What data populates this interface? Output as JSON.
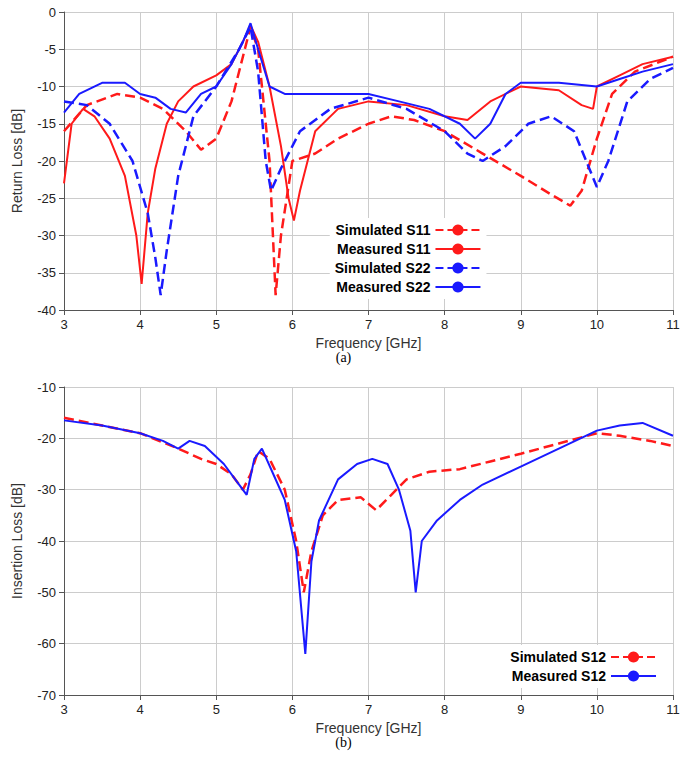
{
  "chart_data": [
    {
      "type": "line",
      "caption": "(a)",
      "x_label": "Frequency [GHz]",
      "y_label": "Return Loss [dB]",
      "xlim": [
        3,
        11
      ],
      "xticks": [
        3,
        4,
        5,
        6,
        7,
        8,
        9,
        10,
        11
      ],
      "ylim": [
        -40,
        0
      ],
      "yticks": [
        -40,
        -35,
        -30,
        -25,
        -20,
        -15,
        -10,
        -5,
        0
      ],
      "grid": true,
      "legend": "bottom",
      "series": [
        {
          "name": "Simulated S11",
          "color": "#ff1a1a",
          "line_style": "dashed",
          "x": [
            3,
            3.3,
            3.7,
            4.0,
            4.3,
            4.6,
            4.8,
            5.0,
            5.2,
            5.35,
            5.45,
            5.55,
            5.7,
            5.78,
            5.85,
            6.0,
            6.3,
            6.6,
            7.0,
            7.3,
            7.6,
            8.0,
            8.5,
            9.0,
            9.4,
            9.65,
            9.8,
            10.0,
            10.2,
            10.5,
            11
          ],
          "values": [
            -16,
            -12.5,
            -11,
            -11.5,
            -13,
            -16,
            -18.5,
            -17,
            -12,
            -6,
            -2,
            -5,
            -20,
            -38,
            -30,
            -20,
            -19,
            -17,
            -15,
            -14,
            -14.5,
            -16,
            -19,
            -22,
            -24.5,
            -26,
            -24,
            -17,
            -11,
            -8,
            -6
          ]
        },
        {
          "name": "Measured S11",
          "color": "#ff1a1a",
          "line_style": "solid",
          "x": [
            3,
            3.1,
            3.25,
            3.4,
            3.6,
            3.8,
            3.95,
            4.02,
            4.1,
            4.2,
            4.35,
            4.5,
            4.7,
            5.0,
            5.2,
            5.35,
            5.45,
            5.55,
            5.7,
            5.85,
            5.95,
            6.02,
            6.1,
            6.3,
            6.6,
            7.0,
            7.5,
            8.0,
            8.3,
            8.6,
            9.0,
            9.5,
            9.8,
            9.95,
            10.0,
            10.3,
            10.6,
            11
          ],
          "values": [
            -23,
            -15,
            -13,
            -14,
            -17,
            -22,
            -30,
            -36.5,
            -27,
            -21,
            -15,
            -12,
            -10,
            -8.5,
            -7,
            -4,
            -1.8,
            -4,
            -10,
            -18,
            -25,
            -28,
            -24,
            -16,
            -13,
            -12,
            -12.5,
            -14,
            -14.5,
            -12,
            -10,
            -10.5,
            -12.5,
            -13,
            -10,
            -8.5,
            -7,
            -6
          ]
        },
        {
          "name": "Simulated S22",
          "color": "#1a1aff",
          "line_style": "dashed",
          "x": [
            3,
            3.3,
            3.6,
            3.9,
            4.1,
            4.2,
            4.27,
            4.35,
            4.5,
            4.7,
            5.0,
            5.3,
            5.45,
            5.55,
            5.65,
            5.72,
            5.85,
            6.1,
            6.5,
            7.0,
            7.5,
            8.0,
            8.3,
            8.5,
            8.8,
            9.1,
            9.4,
            9.7,
            9.9,
            10.0,
            10.15,
            10.4,
            10.7,
            11
          ],
          "values": [
            -12,
            -12.5,
            -15,
            -20,
            -27,
            -33,
            -38,
            -32,
            -22,
            -14,
            -10,
            -5,
            -2,
            -8,
            -20,
            -24,
            -21,
            -16,
            -13,
            -11.5,
            -13,
            -16,
            -19,
            -20,
            -18,
            -15,
            -14,
            -16,
            -21,
            -23.5,
            -20,
            -12,
            -9,
            -7.5
          ]
        },
        {
          "name": "Measured S22",
          "color": "#1a1aff",
          "line_style": "solid",
          "x": [
            3,
            3.2,
            3.5,
            3.8,
            4.0,
            4.2,
            4.4,
            4.6,
            4.8,
            5.0,
            5.2,
            5.35,
            5.45,
            5.55,
            5.7,
            5.9,
            6.3,
            6.7,
            7.0,
            7.4,
            7.8,
            8.2,
            8.4,
            8.6,
            8.8,
            9.0,
            9.5,
            10.0,
            10.3,
            10.6,
            11
          ],
          "values": [
            -13.5,
            -11,
            -9.5,
            -9.5,
            -11,
            -11.5,
            -13,
            -13.5,
            -11,
            -10,
            -7,
            -4,
            -1.5,
            -5,
            -10,
            -11,
            -11,
            -11,
            -11,
            -12,
            -13,
            -15,
            -17,
            -15,
            -11,
            -9.5,
            -9.5,
            -10,
            -9,
            -8,
            -7
          ]
        }
      ]
    },
    {
      "type": "line",
      "caption": "(b)",
      "x_label": "Frequency [GHz]",
      "y_label": "Insertion Loss [dB]",
      "xlim": [
        3,
        11
      ],
      "xticks": [
        3,
        4,
        5,
        6,
        7,
        8,
        9,
        10,
        11
      ],
      "ylim": [
        -70,
        -10
      ],
      "yticks": [
        -70,
        -60,
        -50,
        -40,
        -30,
        -20,
        -10
      ],
      "grid": true,
      "legend": "lower right",
      "series": [
        {
          "name": "Simulated S12",
          "color": "#ff1a1a",
          "line_style": "dashed",
          "x": [
            3,
            3.5,
            4.0,
            4.5,
            4.8,
            5.0,
            5.2,
            5.35,
            5.45,
            5.55,
            5.7,
            5.9,
            6.05,
            6.15,
            6.25,
            6.4,
            6.6,
            6.9,
            7.1,
            7.3,
            7.5,
            7.8,
            8.2,
            8.6,
            9.0,
            9.5,
            10.0,
            10.3,
            10.7,
            11
          ],
          "values": [
            -16,
            -17.5,
            -19,
            -22,
            -24,
            -25,
            -27,
            -30,
            -27,
            -22.5,
            -24,
            -30,
            -40,
            -50,
            -42,
            -35,
            -32,
            -31.5,
            -34,
            -31,
            -28,
            -26.5,
            -26,
            -24.5,
            -23,
            -21,
            -19,
            -19.5,
            -20.5,
            -21.5
          ]
        },
        {
          "name": "Measured S12",
          "color": "#1a1aff",
          "line_style": "solid",
          "x": [
            3,
            3.5,
            4.0,
            4.3,
            4.5,
            4.65,
            4.85,
            5.1,
            5.3,
            5.4,
            5.5,
            5.6,
            5.75,
            5.9,
            6.05,
            6.17,
            6.25,
            6.35,
            6.6,
            6.85,
            7.05,
            7.25,
            7.4,
            7.55,
            7.62,
            7.7,
            7.9,
            8.2,
            8.5,
            9.0,
            9.5,
            10.0,
            10.3,
            10.6,
            11
          ],
          "values": [
            -16.5,
            -17.5,
            -19,
            -20.5,
            -22,
            -20.5,
            -21.5,
            -25,
            -29,
            -31,
            -24,
            -22,
            -27,
            -32,
            -42,
            -62,
            -44,
            -36,
            -28,
            -25,
            -24,
            -25,
            -30,
            -38,
            -50,
            -40,
            -36,
            -32,
            -29,
            -25.5,
            -22,
            -18.5,
            -17.5,
            -17,
            -19.5
          ]
        }
      ]
    }
  ]
}
